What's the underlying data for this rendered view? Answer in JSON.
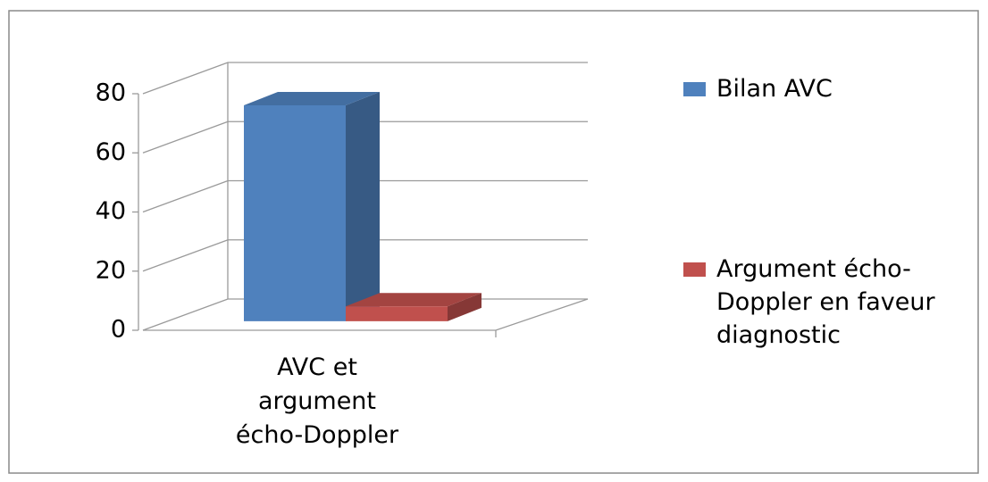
{
  "chart_data": {
    "type": "bar3d",
    "categories": [
      "AVC et argument écho-Doppler"
    ],
    "series": [
      {
        "name": "Bilan AVC",
        "color": "#4f81bd",
        "values": [
          73
        ]
      },
      {
        "name": "Argument écho-Doppler en faveur diagnostic",
        "color": "#c0504d",
        "values": [
          5
        ]
      }
    ],
    "ylim": [
      0,
      80
    ],
    "yticks": [
      0,
      20,
      40,
      60,
      80
    ],
    "grid": true
  }
}
